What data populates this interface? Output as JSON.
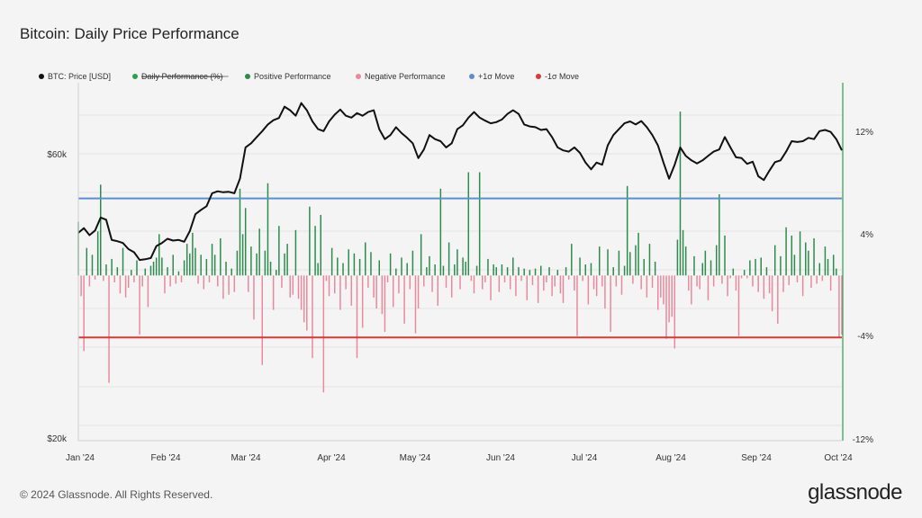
{
  "page": {
    "title": "Bitcoin: Daily Price Performance",
    "footer": "© 2024 Glassnode. All Rights Reserved.",
    "brand": "glassnode"
  },
  "chart_data": {
    "type": "bar",
    "title": "Bitcoin: Daily Price Performance",
    "legend": [
      {
        "name": "BTC: Price [USD]",
        "color": "#111111",
        "strike": false
      },
      {
        "name": "Daily Performance (%)",
        "color": "#2e9e4f",
        "strike": true
      },
      {
        "name": "Positive Performance",
        "color": "#2e8b4e",
        "strike": false
      },
      {
        "name": "Negative Performance",
        "color": "#e88a9c",
        "strike": false
      },
      {
        "name": "+1σ Move",
        "color": "#5b8fd0",
        "strike": false
      },
      {
        "name": "-1σ Move",
        "color": "#d83a3a",
        "strike": false
      }
    ],
    "legend_position": "top-left",
    "x_ticks": [
      "Jan '24",
      "Feb '24",
      "Mar '24",
      "Apr '24",
      "May '24",
      "Jun '24",
      "Jul '24",
      "Aug '24",
      "Sep '24",
      "Oct '24"
    ],
    "left_axis": {
      "ticks": [
        "$60k",
        "$20k"
      ],
      "tick_values": [
        60000,
        20000
      ],
      "scale": "log"
    },
    "right_axis": {
      "ticks": [
        "12%",
        "4%",
        "-4%",
        "-12%"
      ],
      "tick_values": [
        12,
        4,
        -4,
        -12
      ],
      "ylim": [
        -12,
        14
      ]
    },
    "sigma": {
      "plus": 5.6,
      "minus": -4.5
    },
    "x_range_days": [
      0,
      274
    ],
    "price": [
      [
        0,
        44200
      ],
      [
        2,
        45000
      ],
      [
        4,
        43800
      ],
      [
        6,
        44600
      ],
      [
        8,
        46900
      ],
      [
        10,
        46500
      ],
      [
        12,
        43000
      ],
      [
        14,
        42800
      ],
      [
        16,
        42500
      ],
      [
        18,
        41500
      ],
      [
        20,
        41000
      ],
      [
        22,
        39800
      ],
      [
        24,
        39900
      ],
      [
        26,
        40100
      ],
      [
        28,
        42000
      ],
      [
        30,
        42500
      ],
      [
        32,
        43200
      ],
      [
        34,
        42900
      ],
      [
        36,
        43000
      ],
      [
        38,
        42700
      ],
      [
        40,
        44500
      ],
      [
        42,
        47500
      ],
      [
        44,
        48300
      ],
      [
        46,
        49000
      ],
      [
        48,
        51500
      ],
      [
        50,
        51900
      ],
      [
        52,
        51700
      ],
      [
        54,
        51800
      ],
      [
        56,
        51500
      ],
      [
        58,
        54500
      ],
      [
        60,
        61500
      ],
      [
        62,
        62500
      ],
      [
        64,
        64000
      ],
      [
        66,
        65500
      ],
      [
        68,
        67200
      ],
      [
        70,
        68300
      ],
      [
        72,
        68900
      ],
      [
        74,
        72000
      ],
      [
        76,
        71000
      ],
      [
        78,
        69500
      ],
      [
        80,
        73000
      ],
      [
        82,
        71000
      ],
      [
        84,
        68000
      ],
      [
        86,
        66000
      ],
      [
        88,
        65500
      ],
      [
        90,
        68000
      ],
      [
        92,
        69800
      ],
      [
        94,
        71200
      ],
      [
        96,
        69500
      ],
      [
        98,
        69000
      ],
      [
        100,
        70200
      ],
      [
        102,
        69500
      ],
      [
        104,
        70500
      ],
      [
        106,
        71000
      ],
      [
        108,
        66000
      ],
      [
        110,
        63500
      ],
      [
        112,
        64500
      ],
      [
        114,
        66500
      ],
      [
        116,
        65000
      ],
      [
        118,
        63800
      ],
      [
        120,
        62500
      ],
      [
        122,
        59000
      ],
      [
        124,
        61000
      ],
      [
        126,
        64500
      ],
      [
        128,
        63500
      ],
      [
        130,
        63000
      ],
      [
        132,
        61500
      ],
      [
        134,
        62500
      ],
      [
        136,
        66000
      ],
      [
        138,
        67000
      ],
      [
        140,
        69000
      ],
      [
        142,
        70500
      ],
      [
        144,
        69000
      ],
      [
        146,
        68200
      ],
      [
        148,
        67500
      ],
      [
        150,
        67800
      ],
      [
        152,
        68500
      ],
      [
        154,
        70000
      ],
      [
        156,
        71000
      ],
      [
        158,
        70000
      ],
      [
        160,
        67200
      ],
      [
        162,
        66700
      ],
      [
        164,
        66500
      ],
      [
        166,
        65800
      ],
      [
        168,
        66000
      ],
      [
        170,
        64000
      ],
      [
        172,
        61500
      ],
      [
        174,
        60800
      ],
      [
        176,
        60500
      ],
      [
        178,
        61500
      ],
      [
        180,
        60200
      ],
      [
        182,
        58000
      ],
      [
        184,
        56500
      ],
      [
        186,
        58000
      ],
      [
        188,
        57500
      ],
      [
        190,
        62000
      ],
      [
        192,
        64500
      ],
      [
        194,
        66000
      ],
      [
        196,
        67500
      ],
      [
        198,
        68000
      ],
      [
        200,
        67200
      ],
      [
        202,
        68100
      ],
      [
        204,
        66500
      ],
      [
        206,
        64500
      ],
      [
        208,
        62000
      ],
      [
        210,
        58000
      ],
      [
        212,
        54500
      ],
      [
        214,
        57500
      ],
      [
        216,
        61500
      ],
      [
        218,
        59500
      ],
      [
        220,
        58500
      ],
      [
        222,
        57800
      ],
      [
        224,
        58500
      ],
      [
        226,
        59500
      ],
      [
        228,
        60500
      ],
      [
        230,
        61000
      ],
      [
        232,
        64000
      ],
      [
        234,
        61500
      ],
      [
        236,
        59200
      ],
      [
        238,
        59000
      ],
      [
        240,
        57700
      ],
      [
        242,
        58200
      ],
      [
        244,
        55000
      ],
      [
        246,
        54200
      ],
      [
        248,
        56200
      ],
      [
        250,
        58100
      ],
      [
        252,
        58500
      ],
      [
        254,
        60500
      ],
      [
        256,
        63000
      ],
      [
        258,
        62800
      ],
      [
        260,
        63000
      ],
      [
        262,
        63800
      ],
      [
        264,
        63500
      ],
      [
        266,
        65500
      ],
      [
        268,
        65800
      ],
      [
        270,
        65300
      ],
      [
        272,
        63500
      ],
      [
        274,
        60800
      ]
    ],
    "daily_performance": [
      [
        0,
        3.9
      ],
      [
        1,
        -1.5
      ],
      [
        2,
        -5.5
      ],
      [
        3,
        2.0
      ],
      [
        4,
        -0.8
      ],
      [
        5,
        1.5
      ],
      [
        6,
        -0.3
      ],
      [
        7,
        3.2
      ],
      [
        8,
        6.6
      ],
      [
        9,
        -0.4
      ],
      [
        10,
        0.8
      ],
      [
        11,
        -7.8
      ],
      [
        12,
        1.2
      ],
      [
        13,
        -0.5
      ],
      [
        14,
        0.6
      ],
      [
        15,
        -1.3
      ],
      [
        16,
        2.0
      ],
      [
        17,
        -1.6
      ],
      [
        18,
        -0.9
      ],
      [
        19,
        0.4
      ],
      [
        20,
        -0.5
      ],
      [
        21,
        1.1
      ],
      [
        22,
        -4.3
      ],
      [
        23,
        -0.8
      ],
      [
        24,
        0.5
      ],
      [
        25,
        -2.3
      ],
      [
        26,
        0.7
      ],
      [
        27,
        1.0
      ],
      [
        28,
        1.3
      ],
      [
        29,
        3.0
      ],
      [
        30,
        1.3
      ],
      [
        31,
        -1.3
      ],
      [
        32,
        0.6
      ],
      [
        33,
        -0.8
      ],
      [
        34,
        1.5
      ],
      [
        35,
        -0.6
      ],
      [
        36,
        0.3
      ],
      [
        37,
        -0.5
      ],
      [
        38,
        1.1
      ],
      [
        39,
        2.3
      ],
      [
        40,
        1.6
      ],
      [
        41,
        3.1
      ],
      [
        42,
        2.0
      ],
      [
        43,
        -0.6
      ],
      [
        44,
        1.5
      ],
      [
        45,
        -1.0
      ],
      [
        46,
        1.2
      ],
      [
        47,
        -0.5
      ],
      [
        48,
        2.3
      ],
      [
        49,
        1.5
      ],
      [
        50,
        -0.8
      ],
      [
        51,
        2.7
      ],
      [
        52,
        -1.7
      ],
      [
        53,
        1.0
      ],
      [
        54,
        -1.4
      ],
      [
        55,
        0.5
      ],
      [
        56,
        -1.2
      ],
      [
        57,
        1.8
      ],
      [
        58,
        6.3
      ],
      [
        59,
        3.0
      ],
      [
        60,
        4.9
      ],
      [
        61,
        -1.2
      ],
      [
        62,
        2.1
      ],
      [
        63,
        -3.2
      ],
      [
        64,
        1.6
      ],
      [
        65,
        3.4
      ],
      [
        66,
        -6.5
      ],
      [
        67,
        1.8
      ],
      [
        68,
        6.7
      ],
      [
        69,
        1.0
      ],
      [
        70,
        -2.5
      ],
      [
        71,
        0.4
      ],
      [
        72,
        3.6
      ],
      [
        73,
        -0.9
      ],
      [
        74,
        1.6
      ],
      [
        75,
        2.3
      ],
      [
        76,
        -1.6
      ],
      [
        77,
        -1.4
      ],
      [
        78,
        3.3
      ],
      [
        79,
        -1.7
      ],
      [
        80,
        -2.5
      ],
      [
        81,
        -3.4
      ],
      [
        82,
        -4.0
      ],
      [
        83,
        5.0
      ],
      [
        84,
        -6.0
      ],
      [
        85,
        3.6
      ],
      [
        86,
        0.9
      ],
      [
        87,
        4.4
      ],
      [
        88,
        -8.5
      ],
      [
        89,
        -0.4
      ],
      [
        90,
        -1.5
      ],
      [
        91,
        2.0
      ],
      [
        92,
        -1.3
      ],
      [
        93,
        1.3
      ],
      [
        94,
        -2.5
      ],
      [
        95,
        0.9
      ],
      [
        96,
        -1.0
      ],
      [
        97,
        1.9
      ],
      [
        98,
        -2.2
      ],
      [
        99,
        1.6
      ],
      [
        100,
        -6.0
      ],
      [
        101,
        1.2
      ],
      [
        102,
        -3.8
      ],
      [
        103,
        2.4
      ],
      [
        104,
        -0.9
      ],
      [
        105,
        1.7
      ],
      [
        106,
        -1.6
      ],
      [
        107,
        -2.4
      ],
      [
        108,
        1.1
      ],
      [
        109,
        -2.8
      ],
      [
        110,
        -4.1
      ],
      [
        111,
        -0.5
      ],
      [
        112,
        1.6
      ],
      [
        113,
        -2.3
      ],
      [
        114,
        0.5
      ],
      [
        115,
        -1.3
      ],
      [
        116,
        1.3
      ],
      [
        117,
        -3.5
      ],
      [
        118,
        0.9
      ],
      [
        119,
        -1.0
      ],
      [
        120,
        1.8
      ],
      [
        121,
        -4.2
      ],
      [
        122,
        -2.4
      ],
      [
        123,
        3.0
      ],
      [
        124,
        -0.8
      ],
      [
        125,
        0.6
      ],
      [
        126,
        1.4
      ],
      [
        127,
        -1.2
      ],
      [
        128,
        0.8
      ],
      [
        129,
        -2.2
      ],
      [
        130,
        6.3
      ],
      [
        131,
        0.7
      ],
      [
        132,
        -0.9
      ],
      [
        133,
        2.4
      ],
      [
        134,
        -1.6
      ],
      [
        135,
        0.8
      ],
      [
        136,
        1.9
      ],
      [
        137,
        -1.0
      ],
      [
        138,
        1.3
      ],
      [
        139,
        1.0
      ],
      [
        140,
        7.5
      ],
      [
        141,
        -0.4
      ],
      [
        142,
        -1.3
      ],
      [
        143,
        0.7
      ],
      [
        144,
        7.5
      ],
      [
        145,
        -1.0
      ],
      [
        146,
        -0.5
      ],
      [
        147,
        1.2
      ],
      [
        148,
        -1.8
      ],
      [
        149,
        0.8
      ],
      [
        150,
        0.6
      ],
      [
        151,
        -1.2
      ],
      [
        152,
        0.8
      ],
      [
        153,
        -0.5
      ],
      [
        154,
        0.6
      ],
      [
        155,
        -1.0
      ],
      [
        156,
        1.3
      ],
      [
        157,
        -1.5
      ],
      [
        158,
        0.6
      ],
      [
        159,
        -0.4
      ],
      [
        160,
        0.5
      ],
      [
        161,
        -1.8
      ],
      [
        162,
        0.4
      ],
      [
        163,
        -0.7
      ],
      [
        164,
        0.5
      ],
      [
        165,
        -2.0
      ],
      [
        166,
        0.7
      ],
      [
        167,
        -1.1
      ],
      [
        168,
        -0.5
      ],
      [
        169,
        0.6
      ],
      [
        170,
        -1.5
      ],
      [
        171,
        -0.8
      ],
      [
        172,
        0.4
      ],
      [
        173,
        -1.3
      ],
      [
        174,
        -2.0
      ],
      [
        175,
        0.6
      ],
      [
        176,
        -0.3
      ],
      [
        177,
        2.3
      ],
      [
        178,
        -1.1
      ],
      [
        179,
        -4.4
      ],
      [
        180,
        1.3
      ],
      [
        181,
        -0.4
      ],
      [
        182,
        0.8
      ],
      [
        183,
        -2.1
      ],
      [
        184,
        0.9
      ],
      [
        185,
        -1.0
      ],
      [
        186,
        -1.5
      ],
      [
        187,
        2.1
      ],
      [
        188,
        -0.8
      ],
      [
        189,
        -2.4
      ],
      [
        190,
        1.9
      ],
      [
        191,
        -4.1
      ],
      [
        192,
        0.6
      ],
      [
        193,
        -0.8
      ],
      [
        194,
        1.8
      ],
      [
        195,
        -1.4
      ],
      [
        196,
        0.7
      ],
      [
        197,
        6.5
      ],
      [
        198,
        1.7
      ],
      [
        199,
        -0.6
      ],
      [
        200,
        2.2
      ],
      [
        201,
        3.1
      ],
      [
        202,
        -1.0
      ],
      [
        203,
        1.2
      ],
      [
        204,
        -1.6
      ],
      [
        205,
        2.3
      ],
      [
        206,
        -0.9
      ],
      [
        207,
        1.0
      ],
      [
        208,
        -2.5
      ],
      [
        209,
        -1.6
      ],
      [
        210,
        -2.1
      ],
      [
        211,
        -4.6
      ],
      [
        212,
        -3.4
      ],
      [
        213,
        -3.0
      ],
      [
        214,
        -5.3
      ],
      [
        215,
        2.6
      ],
      [
        216,
        11.9
      ],
      [
        217,
        3.3
      ],
      [
        218,
        2.1
      ],
      [
        219,
        -1.1
      ],
      [
        220,
        -2.1
      ],
      [
        221,
        1.4
      ],
      [
        222,
        -0.8
      ],
      [
        223,
        -1.0
      ],
      [
        224,
        0.9
      ],
      [
        225,
        1.8
      ],
      [
        226,
        -1.8
      ],
      [
        227,
        1.1
      ],
      [
        228,
        -0.8
      ],
      [
        229,
        2.2
      ],
      [
        230,
        5.9
      ],
      [
        231,
        -0.6
      ],
      [
        232,
        2.9
      ],
      [
        233,
        -1.5
      ],
      [
        234,
        -0.2
      ],
      [
        235,
        0.5
      ],
      [
        236,
        -1.1
      ],
      [
        237,
        -4.4
      ],
      [
        238,
        -0.2
      ],
      [
        239,
        0.4
      ],
      [
        240,
        -0.2
      ],
      [
        241,
        1.1
      ],
      [
        242,
        -0.8
      ],
      [
        243,
        1.2
      ],
      [
        244,
        -1.2
      ],
      [
        245,
        1.3
      ],
      [
        246,
        -1.7
      ],
      [
        247,
        0.6
      ],
      [
        248,
        -1.3
      ],
      [
        249,
        -2.6
      ],
      [
        250,
        2.2
      ],
      [
        251,
        -3.5
      ],
      [
        252,
        1.4
      ],
      [
        253,
        -1.2
      ],
      [
        254,
        3.5
      ],
      [
        255,
        -0.7
      ],
      [
        256,
        2.9
      ],
      [
        257,
        1.5
      ],
      [
        258,
        -0.5
      ],
      [
        259,
        3.2
      ],
      [
        260,
        -1.5
      ],
      [
        261,
        2.4
      ],
      [
        262,
        1.8
      ],
      [
        263,
        -0.9
      ],
      [
        264,
        2.7
      ],
      [
        265,
        -0.6
      ],
      [
        266,
        0.9
      ],
      [
        267,
        -0.4
      ],
      [
        268,
        2.1
      ],
      [
        269,
        1.2
      ],
      [
        270,
        -1.1
      ],
      [
        271,
        1.5
      ],
      [
        272,
        0.5
      ],
      [
        273,
        -4.5
      ],
      [
        274,
        -4.3
      ]
    ]
  }
}
